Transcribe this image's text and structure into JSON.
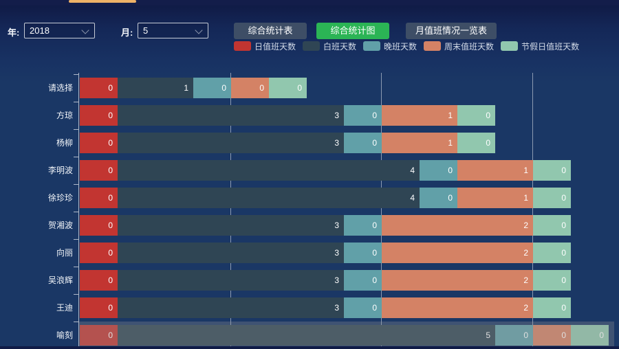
{
  "window": {
    "tab_indicator_color": "#eeb267"
  },
  "toolbar": {
    "year_label": "年:",
    "year_value": "2018",
    "month_label": "月:",
    "month_value": "5",
    "buttons": [
      {
        "label": "综合统计表",
        "active": false
      },
      {
        "label": "综合统计图",
        "active": true
      },
      {
        "label": "月值班情况一览表",
        "active": false
      }
    ],
    "active_button_color": "#2bb455",
    "button_color": "#3e4e66"
  },
  "legend": {
    "items": [
      {
        "label": "日值班天数",
        "color": "#c23531"
      },
      {
        "label": "白班天数",
        "color": "#2f4554"
      },
      {
        "label": "晚班天数",
        "color": "#61a0a8"
      },
      {
        "label": "周末值班天数",
        "color": "#d48265"
      },
      {
        "label": "节假日值班天数",
        "color": "#91c7ae"
      }
    ]
  },
  "chart_data": {
    "type": "bar",
    "orientation": "horizontal",
    "stacked": true,
    "categories": [
      "请选择",
      "方琼",
      "杨柳",
      "李明波",
      "徐珍珍",
      "贺湘波",
      "向丽",
      "吴浪辉",
      "王迪",
      "喻刻"
    ],
    "series": [
      {
        "name": "日值班天数",
        "color": "#c23531",
        "values": [
          0,
          0,
          0,
          0,
          0,
          0,
          0,
          0,
          0,
          0
        ]
      },
      {
        "name": "白班天数",
        "color": "#2f4554",
        "values": [
          1,
          3,
          3,
          4,
          4,
          3,
          3,
          3,
          3,
          5
        ]
      },
      {
        "name": "晚班天数",
        "color": "#61a0a8",
        "values": [
          0,
          0,
          0,
          0,
          0,
          0,
          0,
          0,
          0,
          0
        ]
      },
      {
        "name": "周末值班天数",
        "color": "#d48265",
        "values": [
          0,
          1,
          1,
          1,
          1,
          2,
          2,
          2,
          2,
          0
        ]
      },
      {
        "name": "节假日值班天数",
        "color": "#91c7ae",
        "values": [
          0,
          0,
          0,
          0,
          0,
          0,
          0,
          0,
          0,
          0
        ]
      }
    ],
    "value_labels_visible": true,
    "zero_rendered_as_half_unit": true,
    "xlim": [
      0,
      7
    ],
    "gridline_interval": 2,
    "grid_on": true,
    "legend_position": "top-center",
    "highlighted_category": "喻刻",
    "background_color": "#1a3765"
  }
}
